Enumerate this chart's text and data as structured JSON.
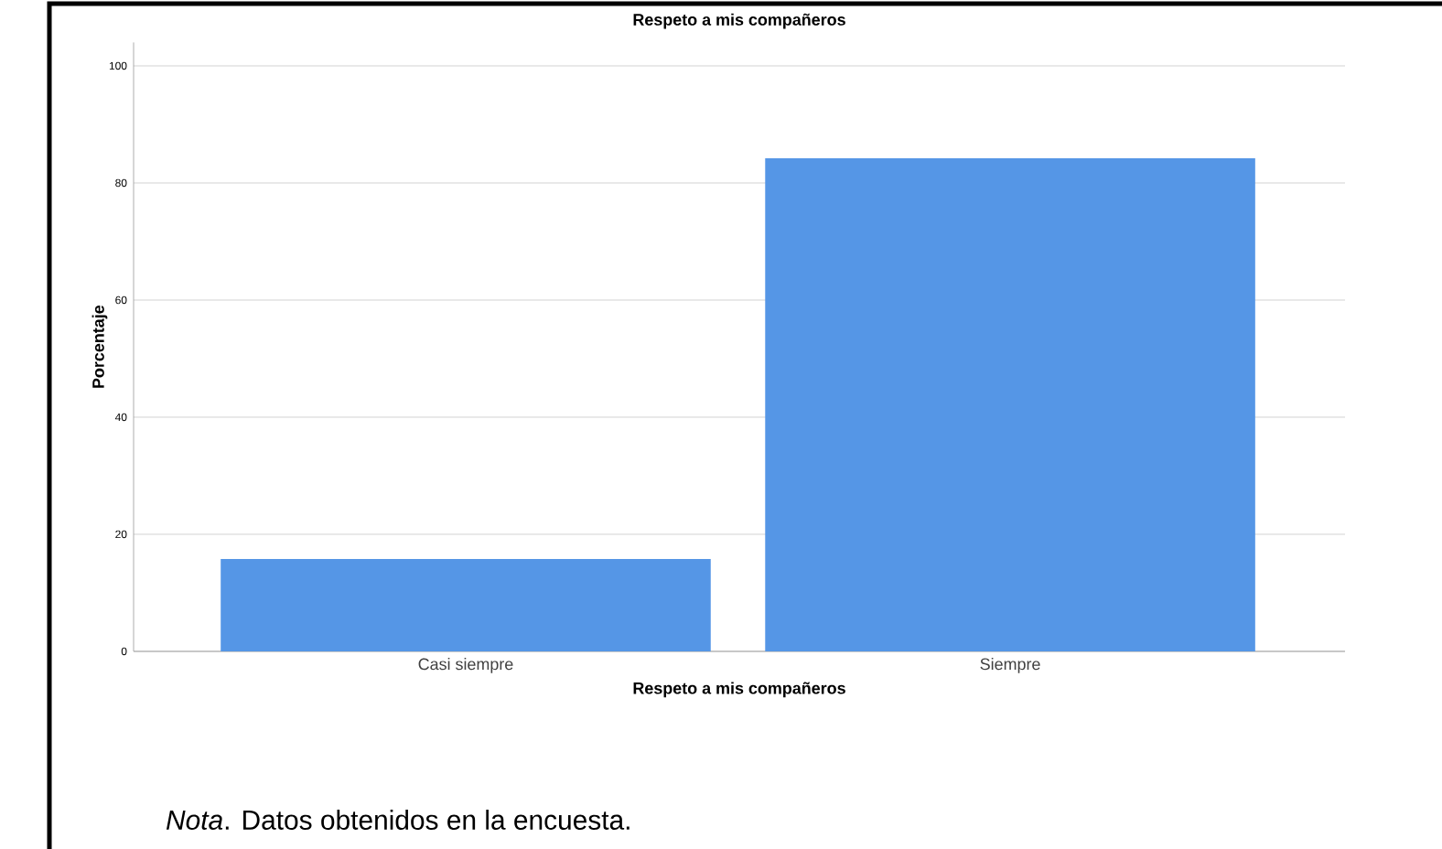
{
  "chart_data": {
    "type": "bar",
    "title": "Respeto a mis compañeros",
    "xlabel": "Respeto a mis compañeros",
    "ylabel": "Porcentaje",
    "categories": [
      "Casi siempre",
      "Siempre"
    ],
    "values": [
      15.8,
      84.2
    ],
    "color": "#5596e6",
    "ylim": [
      0,
      104
    ],
    "yticks": [
      0,
      20,
      40,
      60,
      80,
      100
    ],
    "grid": "y",
    "annotations": [
      "*Nota*. Datos obtenidos en la encuesta."
    ]
  }
}
